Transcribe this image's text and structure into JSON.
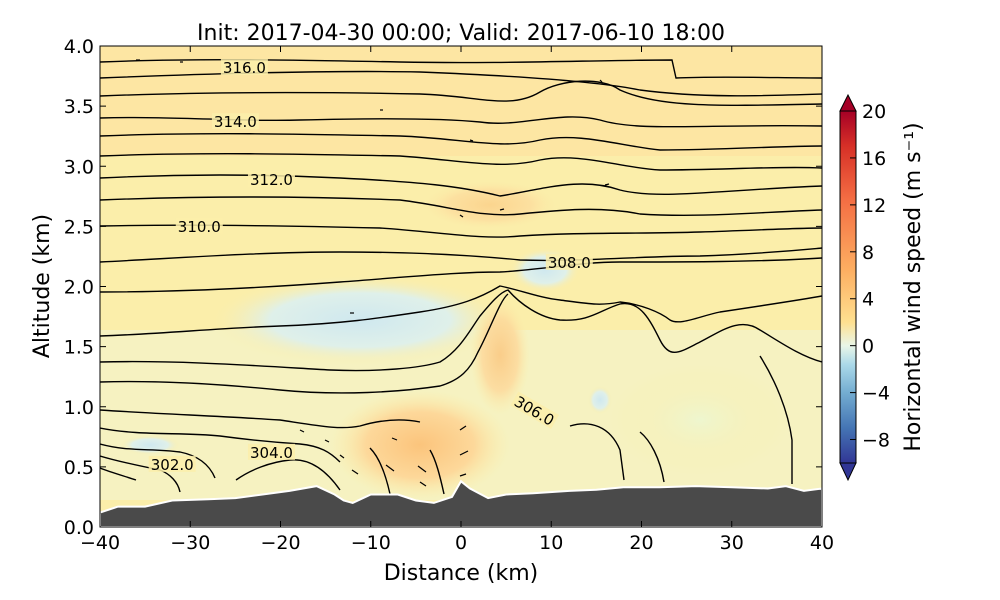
{
  "chart_data": {
    "type": "contour-cross-section",
    "title": "Init: 2017-04-30 00:00; Valid: 2017-06-10 18:00",
    "xlabel": "Distance (km)",
    "ylabel": "Altitude (km)",
    "xlim": [
      -40,
      40
    ],
    "ylim": [
      0.0,
      4.0
    ],
    "x_ticks": [
      "−40",
      "−30",
      "−20",
      "−10",
      "0",
      "10",
      "20",
      "30",
      "40"
    ],
    "y_ticks": [
      "0.0",
      "0.5",
      "1.0",
      "1.5",
      "2.0",
      "2.5",
      "3.0",
      "3.5",
      "4.0"
    ],
    "colorbar": {
      "label": "Horizontal wind speed (m s⁻¹)",
      "range": [
        -10,
        20
      ],
      "ticks": [
        "−8",
        "−4",
        "0",
        "4",
        "8",
        "12",
        "16",
        "20"
      ],
      "tick_values": [
        -8,
        -4,
        0,
        4,
        8,
        12,
        16,
        20
      ],
      "colormap": "RdYlBu_r",
      "extend": "both"
    },
    "contour_labels": [
      {
        "text": "316.0",
        "x": -24,
        "y": 3.8
      },
      {
        "text": "314.0",
        "x": -25,
        "y": 3.35
      },
      {
        "text": "312.0",
        "x": -21,
        "y": 2.87
      },
      {
        "text": "310.0",
        "x": -29,
        "y": 2.48
      },
      {
        "text": "308.0",
        "x": 12,
        "y": 2.18
      },
      {
        "text": "306.0",
        "x": 8,
        "y": 0.95
      },
      {
        "text": "304.0",
        "x": -21,
        "y": 0.6
      },
      {
        "text": "302.0",
        "x": -32,
        "y": 0.5
      }
    ],
    "terrain_height_km": [
      [
        -40,
        0.12
      ],
      [
        -38,
        0.17
      ],
      [
        -35,
        0.17
      ],
      [
        -32,
        0.22
      ],
      [
        -28,
        0.23
      ],
      [
        -25,
        0.24
      ],
      [
        -22,
        0.27
      ],
      [
        -19,
        0.3
      ],
      [
        -16,
        0.34
      ],
      [
        -14,
        0.27
      ],
      [
        -13,
        0.22
      ],
      [
        -12,
        0.2
      ],
      [
        -10,
        0.27
      ],
      [
        -7,
        0.27
      ],
      [
        -5,
        0.22
      ],
      [
        -3,
        0.2
      ],
      [
        -1,
        0.25
      ],
      [
        0,
        0.38
      ],
      [
        1,
        0.32
      ],
      [
        3,
        0.24
      ],
      [
        5,
        0.27
      ],
      [
        8,
        0.28
      ],
      [
        12,
        0.3
      ],
      [
        15,
        0.31
      ],
      [
        18,
        0.33
      ],
      [
        22,
        0.33
      ],
      [
        26,
        0.34
      ],
      [
        30,
        0.33
      ],
      [
        34,
        0.32
      ],
      [
        36,
        0.34
      ],
      [
        38,
        0.3
      ],
      [
        40,
        0.32
      ]
    ]
  },
  "colors": {
    "terrain": "#4a4a4a",
    "background_field": "#fbeeaa"
  }
}
